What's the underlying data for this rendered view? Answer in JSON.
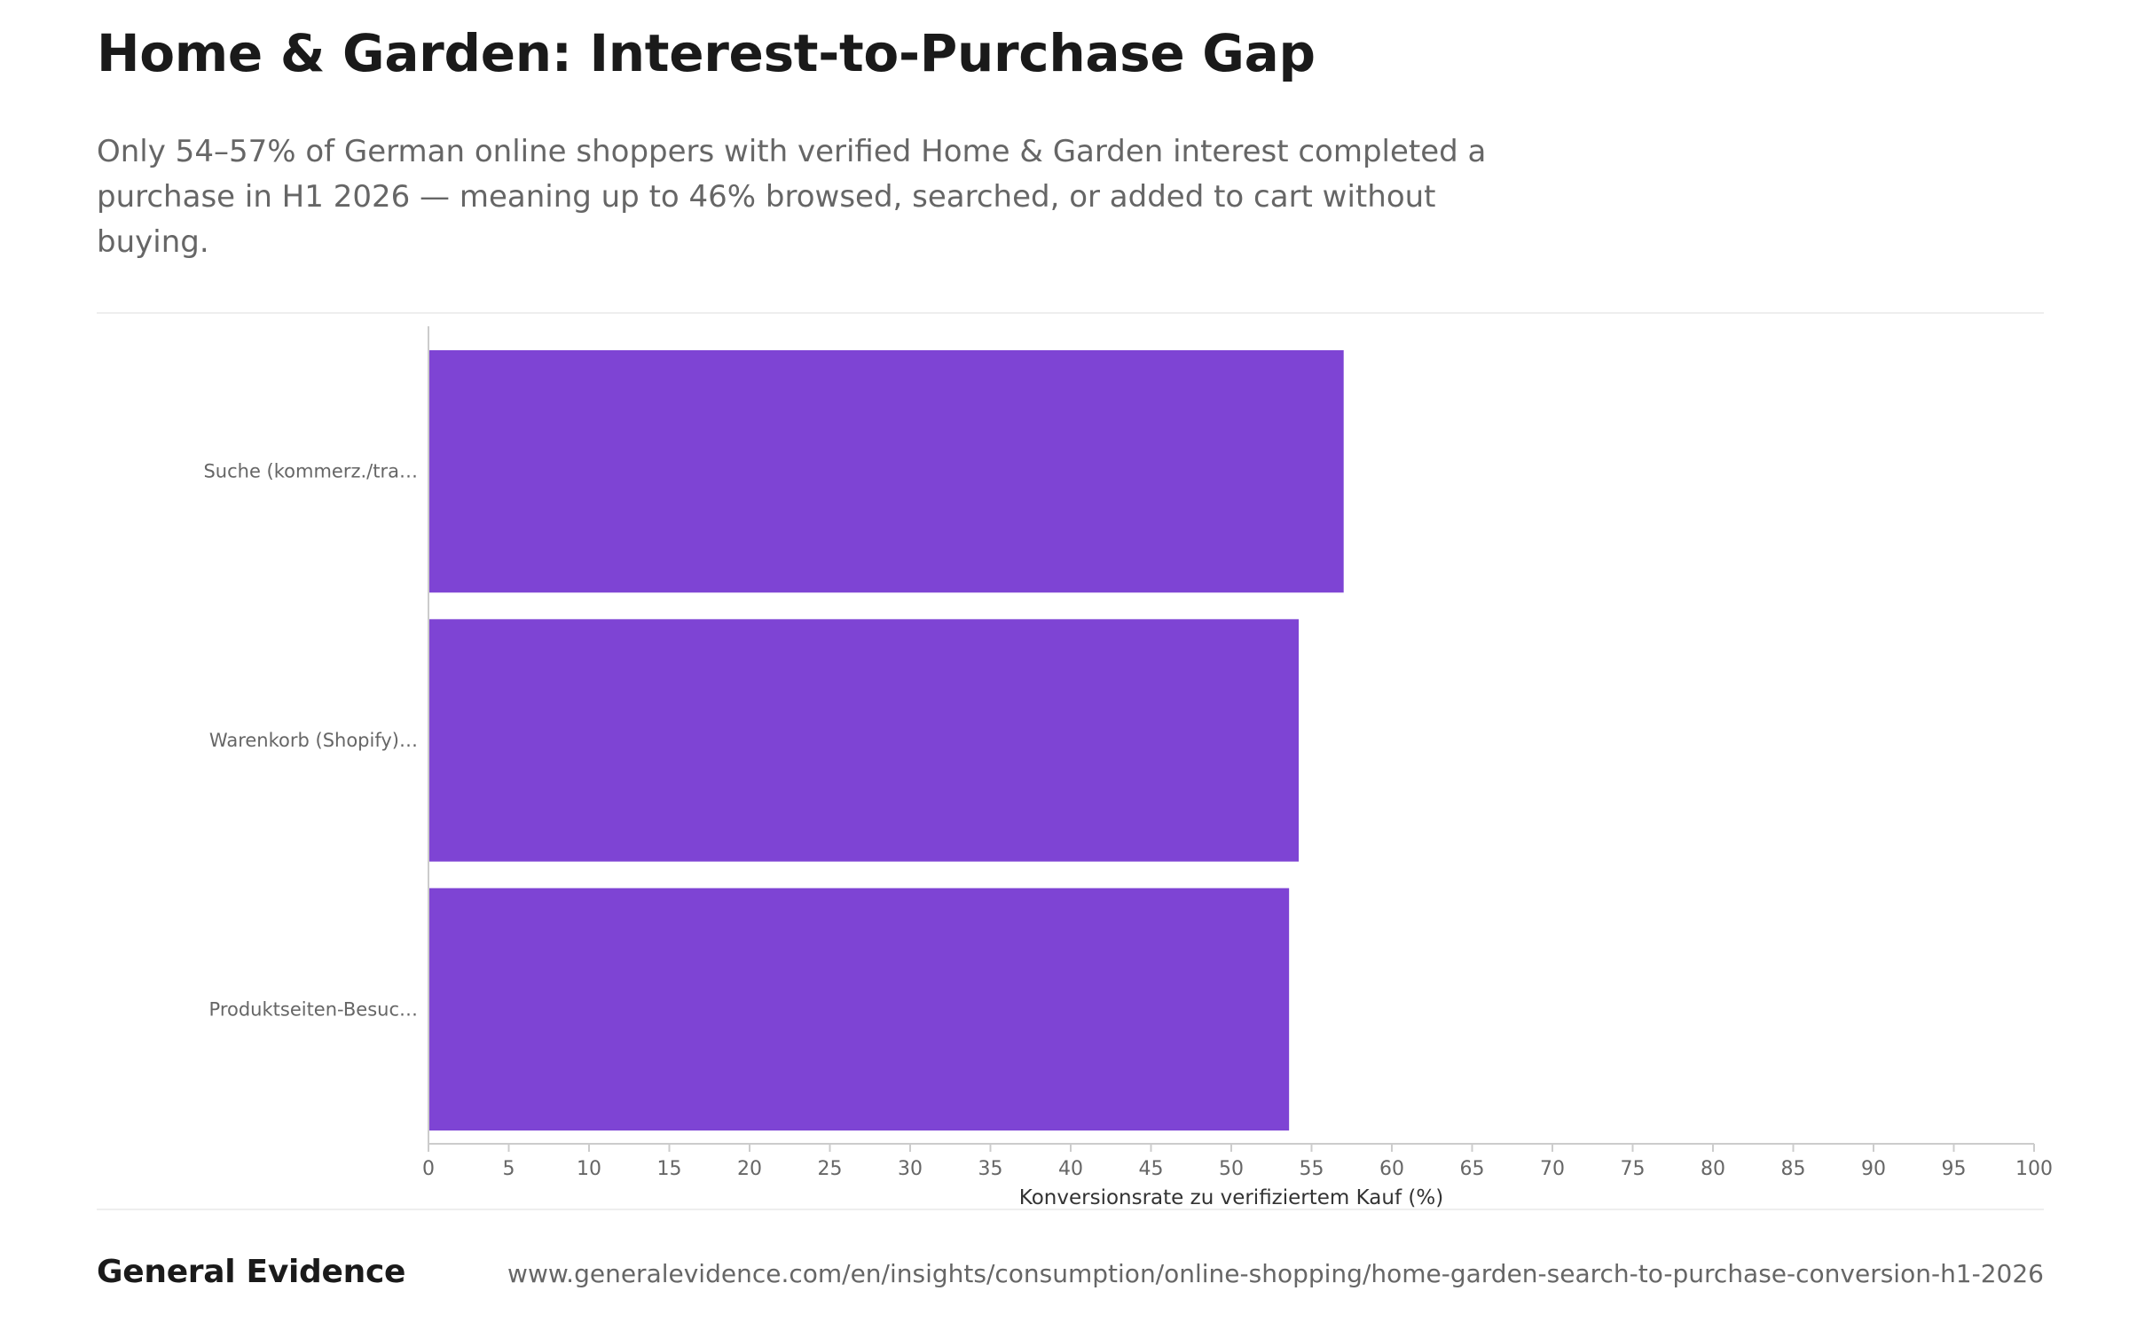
{
  "title": "Home & Garden: Interest-to-Purchase Gap",
  "subtitle": "Only 54–57% of German online shoppers with verified Home & Garden interest completed a purchase in H1 2026 — meaning up to 46% browsed, searched, or added to cart without buying.",
  "footer": {
    "brand": "General Evidence",
    "url": "www.generalevidence.com/en/insights/consumption/online-shopping/home-garden-search-to-purchase-conversion-h1-2026"
  },
  "colors": {
    "bar": "#7e44d4",
    "axis": "#cccccc",
    "tick_label": "#666666",
    "axis_label": "#333333"
  },
  "chart_data": {
    "type": "bar",
    "orientation": "horizontal",
    "categories": [
      "Suche (kommerz./tra…",
      "Warenkorb (Shopify)…",
      "Produktseiten-Besuc…"
    ],
    "values": [
      57,
      54.2,
      53.6
    ],
    "xlabel": "Konversionsrate zu verifiziertem Kauf (%)",
    "xlim": [
      0,
      100
    ],
    "xticks": [
      0,
      5,
      10,
      15,
      20,
      25,
      30,
      35,
      40,
      45,
      50,
      55,
      60,
      65,
      70,
      75,
      80,
      85,
      90,
      95,
      100
    ],
    "grid": false,
    "legend": "none"
  }
}
